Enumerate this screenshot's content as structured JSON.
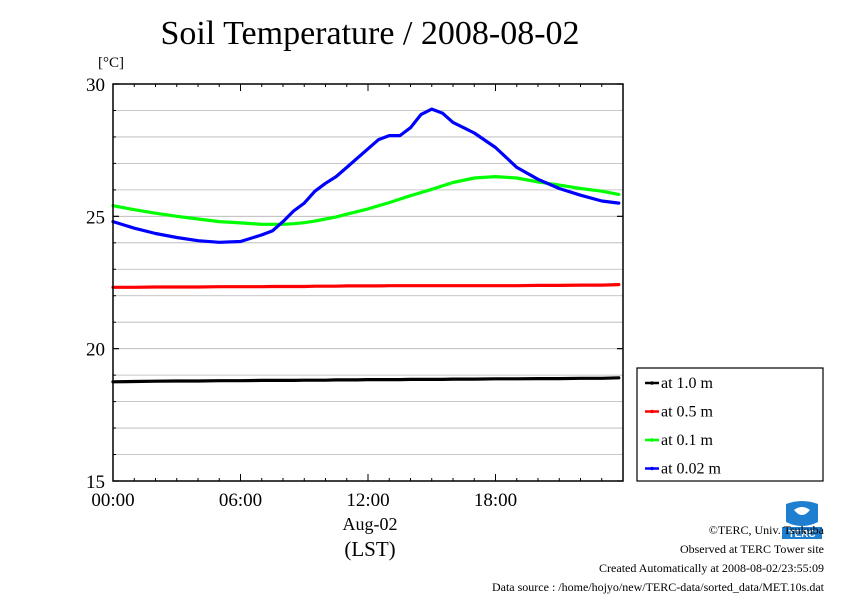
{
  "title": "Soil Temperature / 2008-08-02",
  "chart_data": {
    "type": "line",
    "title": "Soil Temperature / 2008-08-02",
    "ylabel": "[°C]",
    "xlabel": "Aug-02",
    "xlabel_2": "(LST)",
    "ylim": [
      15,
      30
    ],
    "yticks": [
      "15",
      "20",
      "25",
      "30"
    ],
    "xlim_hours": [
      0,
      24
    ],
    "xticks": [
      "00:00",
      "06:00",
      "12:00",
      "18:00"
    ],
    "grid": true,
    "legend_position": "right",
    "x": [
      0,
      1,
      2,
      3,
      4,
      5,
      6,
      7,
      7.5,
      8,
      8.5,
      9,
      9.5,
      10,
      10.5,
      11,
      11.5,
      12,
      12.5,
      13,
      13.5,
      14,
      14.5,
      15,
      15.5,
      16,
      17,
      18,
      19,
      20,
      21,
      22,
      23,
      23.8
    ],
    "series": [
      {
        "name": "at 1.0 m",
        "color": "#000000",
        "values": [
          18.75,
          18.76,
          18.77,
          18.78,
          18.78,
          18.79,
          18.79,
          18.8,
          18.8,
          18.8,
          18.8,
          18.81,
          18.81,
          18.81,
          18.82,
          18.82,
          18.82,
          18.83,
          18.83,
          18.83,
          18.83,
          18.84,
          18.84,
          18.84,
          18.84,
          18.85,
          18.85,
          18.86,
          18.86,
          18.87,
          18.87,
          18.88,
          18.88,
          18.9
        ]
      },
      {
        "name": "at 0.5 m",
        "color": "#ff0000",
        "values": [
          22.32,
          22.32,
          22.33,
          22.33,
          22.33,
          22.34,
          22.34,
          22.34,
          22.35,
          22.35,
          22.35,
          22.35,
          22.36,
          22.36,
          22.36,
          22.37,
          22.37,
          22.37,
          22.37,
          22.38,
          22.38,
          22.38,
          22.38,
          22.38,
          22.38,
          22.38,
          22.38,
          22.38,
          22.38,
          22.39,
          22.39,
          22.4,
          22.4,
          22.42
        ]
      },
      {
        "name": "at 0.1 m",
        "color": "#00ff00",
        "values": [
          25.4,
          25.25,
          25.12,
          25.0,
          24.9,
          24.8,
          24.75,
          24.7,
          24.7,
          24.7,
          24.72,
          24.76,
          24.82,
          24.9,
          24.98,
          25.08,
          25.18,
          25.28,
          25.4,
          25.52,
          25.65,
          25.78,
          25.9,
          26.02,
          26.15,
          26.28,
          26.45,
          26.5,
          26.45,
          26.3,
          26.18,
          26.05,
          25.95,
          25.83
        ]
      },
      {
        "name": "at 0.02 m",
        "color": "#0000ff",
        "values": [
          24.8,
          24.55,
          24.35,
          24.2,
          24.08,
          24.02,
          24.05,
          24.3,
          24.45,
          24.8,
          25.2,
          25.5,
          25.95,
          26.25,
          26.5,
          26.85,
          27.2,
          27.55,
          27.9,
          28.05,
          28.05,
          28.35,
          28.85,
          29.05,
          28.9,
          28.55,
          28.15,
          27.6,
          26.85,
          26.4,
          26.05,
          25.8,
          25.58,
          25.5
        ]
      }
    ]
  },
  "credits": {
    "line1": "©TERC, Univ. Tsukuba",
    "line2": "Observed at TERC Tower site",
    "line3": "Created Automatically at 2008-08-02/23:55:09",
    "line4": "Data source : /home/hojyo/new/TERC-data/sorted_data/MET.10s.dat"
  },
  "logo": {
    "icon": "terc-logo-icon",
    "text": "TERC",
    "color": "#1e7fd0"
  }
}
